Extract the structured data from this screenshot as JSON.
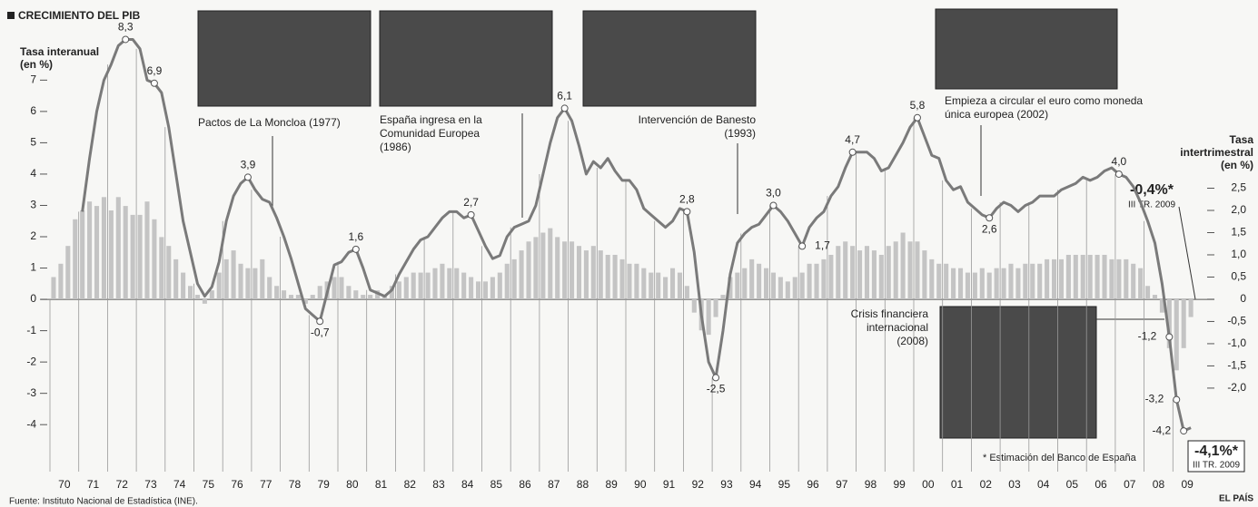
{
  "chart_data": {
    "type": "line-bar",
    "title": "CRECIMIENTO DEL PIB",
    "ylabel": [
      "Tasa interanual",
      "(en %)"
    ],
    "y2label": [
      "Tasa",
      "intertrimestral",
      "(en %)"
    ],
    "categories": [
      null,
      "70",
      null,
      null,
      null,
      "71",
      null,
      null,
      null,
      "72",
      null,
      null,
      null,
      "73",
      null,
      null,
      null,
      "74",
      null,
      null,
      null,
      "75",
      null,
      null,
      null,
      "76",
      null,
      null,
      null,
      "77",
      null,
      null,
      null,
      "78",
      null,
      null,
      null,
      "79",
      null,
      null,
      null,
      "80",
      null,
      null,
      null,
      "81",
      null,
      null,
      null,
      "82",
      null,
      null,
      null,
      "83",
      null,
      null,
      null,
      "84",
      null,
      null,
      null,
      "85",
      null,
      null,
      null,
      "86",
      null,
      null,
      null,
      "87",
      null,
      null,
      null,
      "88",
      null,
      null,
      null,
      "89",
      null,
      null,
      null,
      "90",
      null,
      null,
      null,
      "91",
      null,
      null,
      null,
      "92",
      null,
      null,
      null,
      "93",
      null,
      null,
      null,
      "94",
      null,
      null,
      null,
      "95",
      null,
      null,
      null,
      "96",
      null,
      null,
      null,
      "97",
      null,
      null,
      null,
      "98",
      null,
      null,
      null,
      "99",
      null,
      null,
      null,
      "00",
      null,
      null,
      null,
      "01",
      null,
      null,
      null,
      "02",
      null,
      null,
      null,
      "03",
      null,
      null,
      null,
      "04",
      null,
      null,
      null,
      "05",
      null,
      null,
      null,
      "06",
      null,
      null,
      null,
      "07",
      null,
      null,
      null,
      "08",
      null,
      null,
      null,
      "09",
      null,
      null
    ],
    "series": [
      {
        "type": "line",
        "color": "#7a7a7a",
        "values": [
          null,
          null,
          null,
          null,
          2.8,
          4.5,
          6.0,
          7.0,
          7.5,
          8.1,
          8.3,
          8.3,
          8.0,
          7.0,
          6.9,
          6.6,
          5.5,
          4.0,
          2.5,
          1.5,
          0.5,
          0.1,
          0.4,
          1.2,
          2.5,
          3.3,
          3.7,
          3.9,
          3.5,
          3.2,
          3.1,
          2.6,
          2.0,
          1.3,
          0.5,
          -0.3,
          -0.5,
          -0.7,
          0.2,
          1.1,
          1.2,
          1.5,
          1.6,
          1.0,
          0.3,
          0.2,
          0.1,
          0.3,
          0.8,
          1.2,
          1.6,
          1.9,
          2.0,
          2.3,
          2.6,
          2.8,
          2.8,
          2.6,
          2.7,
          2.2,
          1.7,
          1.3,
          1.4,
          2.0,
          2.3,
          2.4,
          2.5,
          3.0,
          4.0,
          5.0,
          5.8,
          6.1,
          5.7,
          4.9,
          4.0,
          4.4,
          4.2,
          4.5,
          4.1,
          3.8,
          3.8,
          3.5,
          2.9,
          2.7,
          2.5,
          2.3,
          2.5,
          2.9,
          2.8,
          1.5,
          -0.5,
          -2.0,
          -2.5,
          -1.0,
          0.8,
          1.8,
          2.1,
          2.3,
          2.4,
          2.7,
          3.0,
          2.8,
          2.5,
          2.1,
          1.7,
          2.3,
          2.6,
          2.8,
          3.3,
          3.6,
          4.2,
          4.7,
          4.7,
          4.7,
          4.5,
          4.1,
          4.2,
          4.6,
          5.0,
          5.5,
          5.8,
          5.2,
          4.6,
          4.5,
          3.8,
          3.5,
          3.6,
          3.1,
          2.9,
          2.7,
          2.6,
          2.9,
          3.1,
          3.0,
          2.8,
          3.0,
          3.1,
          3.3,
          3.3,
          3.3,
          3.5,
          3.6,
          3.7,
          3.9,
          3.8,
          3.9,
          4.1,
          4.2,
          4.0,
          3.9,
          3.6,
          3.1,
          2.5,
          1.8,
          0.5,
          -1.2,
          -3.2,
          -4.2,
          -4.1,
          null
        ],
        "value_labels": [
          null,
          null,
          null,
          null,
          null,
          null,
          null,
          null,
          null,
          null,
          "8,3",
          null,
          null,
          null,
          "6,9",
          null,
          null,
          null,
          null,
          null,
          null,
          null,
          null,
          null,
          null,
          null,
          null,
          "3,9",
          null,
          null,
          null,
          null,
          null,
          null,
          null,
          null,
          null,
          "-0,7",
          null,
          null,
          null,
          null,
          "1,6",
          null,
          null,
          null,
          null,
          null,
          null,
          null,
          null,
          null,
          null,
          null,
          null,
          null,
          null,
          null,
          "2,7",
          null,
          null,
          null,
          null,
          null,
          null,
          null,
          null,
          null,
          null,
          null,
          null,
          "6,1",
          null,
          null,
          null,
          null,
          null,
          null,
          null,
          null,
          null,
          null,
          null,
          null,
          null,
          null,
          null,
          null,
          "2,8",
          null,
          null,
          null,
          "-2,5",
          null,
          null,
          null,
          null,
          null,
          null,
          null,
          "3,0",
          null,
          null,
          null,
          "1,7",
          null,
          null,
          null,
          null,
          null,
          null,
          "4,7",
          null,
          null,
          null,
          null,
          null,
          null,
          null,
          null,
          "5,8",
          null,
          null,
          null,
          null,
          null,
          null,
          null,
          null,
          null,
          "2,6",
          null,
          null,
          null,
          null,
          null,
          null,
          null,
          null,
          null,
          null,
          null,
          null,
          null,
          null,
          null,
          null,
          null,
          "4,0",
          null,
          null,
          null,
          null,
          null,
          null,
          "-1,2",
          "-3,2",
          "-4,2",
          null,
          null
        ]
      },
      {
        "type": "bar",
        "axis": "y2",
        "color": "#c4c4c4",
        "values": [
          0.5,
          0.8,
          1.2,
          1.8,
          2.0,
          2.2,
          2.1,
          2.3,
          2.0,
          2.3,
          2.1,
          1.9,
          1.9,
          2.2,
          1.8,
          1.4,
          1.2,
          0.9,
          0.6,
          0.3,
          0.1,
          -0.1,
          0.2,
          0.6,
          0.9,
          1.1,
          0.8,
          0.7,
          0.7,
          0.9,
          0.5,
          0.3,
          0.2,
          0.1,
          0.1,
          -0.1,
          0.1,
          0.3,
          0.4,
          0.5,
          0.5,
          0.3,
          0.2,
          0.1,
          0.1,
          0.2,
          0.1,
          0.3,
          0.4,
          0.5,
          0.6,
          0.6,
          0.6,
          0.7,
          0.8,
          0.7,
          0.7,
          0.6,
          0.5,
          0.4,
          0.4,
          0.5,
          0.6,
          0.8,
          0.9,
          1.1,
          1.3,
          1.4,
          1.5,
          1.6,
          1.4,
          1.3,
          1.3,
          1.2,
          1.1,
          1.2,
          1.1,
          1.0,
          1.0,
          0.9,
          0.8,
          0.8,
          0.7,
          0.6,
          0.6,
          0.5,
          0.7,
          0.6,
          0.3,
          -0.3,
          -0.7,
          -0.8,
          -0.4,
          0.1,
          0.5,
          0.6,
          0.7,
          0.9,
          0.8,
          0.7,
          0.6,
          0.5,
          0.4,
          0.5,
          0.6,
          0.8,
          0.8,
          0.9,
          1.0,
          1.2,
          1.3,
          1.2,
          1.1,
          1.2,
          1.1,
          1.0,
          1.2,
          1.3,
          1.5,
          1.3,
          1.3,
          1.1,
          0.9,
          0.8,
          0.8,
          0.7,
          0.7,
          0.6,
          0.6,
          0.7,
          0.6,
          0.7,
          0.7,
          0.8,
          0.7,
          0.8,
          0.8,
          0.8,
          0.9,
          0.9,
          0.9,
          1.0,
          1.0,
          1.0,
          1.0,
          1.0,
          1.0,
          0.9,
          0.9,
          0.9,
          0.8,
          0.7,
          0.3,
          0.1,
          -0.3,
          -1.1,
          -1.6,
          -1.1,
          -0.4,
          null
        ]
      }
    ],
    "ylim": [
      -5.5,
      8.4
    ],
    "yticks": [
      -4,
      -3,
      -2,
      -1,
      0,
      1,
      2,
      3,
      4,
      5,
      6,
      7
    ],
    "y2lim": [
      -3.88,
      5.92
    ],
    "y2ticks": [
      {
        "value": -2.0,
        "label": "-2,0"
      },
      {
        "value": -1.5,
        "label": "-1,5"
      },
      {
        "value": -1.0,
        "label": "-1,0"
      },
      {
        "value": -0.5,
        "label": "-0,5"
      },
      0,
      {
        "value": 0.5,
        "label": "0,5"
      },
      {
        "value": 1.0,
        "label": "1,0"
      },
      {
        "value": 1.5,
        "label": "1,5"
      },
      {
        "value": 2.0,
        "label": "2,0"
      },
      {
        "value": 2.5,
        "label": "2,5"
      }
    ],
    "events": [
      {
        "lines": [
          "Pactos de La Moncloa (1977)"
        ]
      },
      {
        "lines": [
          "España ingresa en la",
          "Comunidad Europea",
          "(1986)"
        ]
      },
      {
        "lines": [
          "Intervención de Banesto",
          "(1993)"
        ]
      },
      {
        "lines": [
          "Empieza a circular el euro como moneda",
          "única europea (2002)"
        ]
      },
      {
        "lines": [
          "Crisis financiera",
          "internacional",
          "(2008)"
        ]
      }
    ],
    "highlights": [
      {
        "text": "-0,4%*",
        "note": "III TR. 2009"
      },
      {
        "text": "-4,1%*",
        "note": "III TR. 2009"
      }
    ],
    "footnote": "* Estimación del Banco de España",
    "source": "Fuente: Instituto Nacional de Estadística (INE).",
    "brand": "EL PAÍS"
  }
}
